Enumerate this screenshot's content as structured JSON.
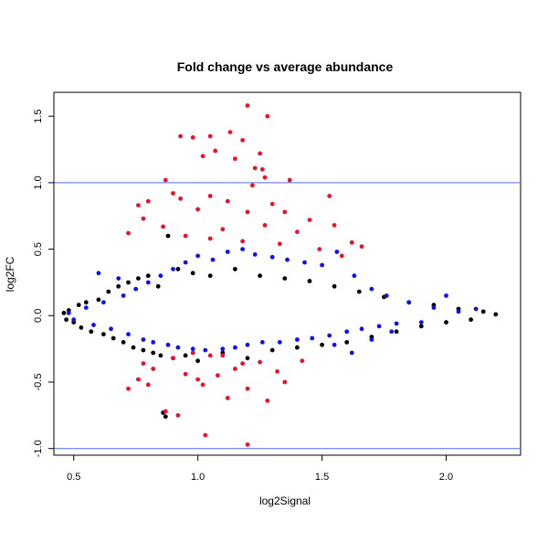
{
  "chart_data": {
    "type": "scatter",
    "title": "Fold change vs average abundance",
    "xlabel": "log2Signal",
    "ylabel": "log2FC",
    "xlim": [
      0.42,
      2.3
    ],
    "ylim": [
      -1.05,
      1.68
    ],
    "xticks": [
      0.5,
      1.0,
      1.5,
      2.0
    ],
    "yticks": [
      -1.0,
      -0.5,
      0.0,
      0.5,
      1.0,
      1.5
    ],
    "xtick_labels": [
      "0.5",
      "1.0",
      "1.5",
      "2.0"
    ],
    "ytick_labels": [
      "-1.0",
      "-0.5",
      "0.0",
      "0.5",
      "1.0",
      "1.5"
    ],
    "grid": false,
    "legend": "none",
    "hlines": [
      {
        "y": 1.0,
        "color": "#5566ee"
      },
      {
        "y": -1.0,
        "color": "#5566ee"
      }
    ],
    "series": [
      {
        "color": "#000000",
        "points": [
          [
            0.46,
            0.02
          ],
          [
            0.47,
            -0.03
          ],
          [
            0.48,
            0.04
          ],
          [
            0.5,
            -0.05
          ],
          [
            0.52,
            0.08
          ],
          [
            0.53,
            -0.09
          ],
          [
            0.55,
            0.1
          ],
          [
            0.57,
            -0.12
          ],
          [
            0.6,
            0.12
          ],
          [
            0.62,
            -0.14
          ],
          [
            0.64,
            0.18
          ],
          [
            0.66,
            -0.17
          ],
          [
            0.68,
            0.22
          ],
          [
            0.7,
            -0.2
          ],
          [
            0.72,
            0.25
          ],
          [
            0.74,
            -0.24
          ],
          [
            0.76,
            0.28
          ],
          [
            0.78,
            -0.26
          ],
          [
            0.8,
            0.3
          ],
          [
            0.82,
            -0.28
          ],
          [
            0.84,
            0.22
          ],
          [
            0.85,
            -0.3
          ],
          [
            0.86,
            -0.73
          ],
          [
            0.87,
            -0.76
          ],
          [
            0.88,
            0.6
          ],
          [
            0.9,
            -0.32
          ],
          [
            0.92,
            0.35
          ],
          [
            0.95,
            -0.3
          ],
          [
            0.98,
            0.32
          ],
          [
            1.0,
            -0.34
          ],
          [
            1.05,
            0.3
          ],
          [
            1.1,
            -0.28
          ],
          [
            1.15,
            0.35
          ],
          [
            1.2,
            -0.32
          ],
          [
            1.25,
            0.3
          ],
          [
            1.3,
            -0.26
          ],
          [
            1.35,
            0.28
          ],
          [
            1.4,
            -0.24
          ],
          [
            1.45,
            0.26
          ],
          [
            1.5,
            -0.22
          ],
          [
            1.55,
            0.22
          ],
          [
            1.6,
            -0.2
          ],
          [
            1.65,
            0.18
          ],
          [
            1.7,
            -0.16
          ],
          [
            1.75,
            0.14
          ],
          [
            1.8,
            -0.12
          ],
          [
            1.85,
            0.1
          ],
          [
            1.9,
            -0.08
          ],
          [
            1.95,
            0.08
          ],
          [
            2.0,
            -0.05
          ],
          [
            2.05,
            0.05
          ],
          [
            2.1,
            -0.03
          ],
          [
            2.15,
            0.03
          ],
          [
            2.2,
            0.01
          ]
        ]
      },
      {
        "color": "#e8142a",
        "points": [
          [
            1.2,
            1.58
          ],
          [
            1.28,
            1.5
          ],
          [
            1.13,
            1.38
          ],
          [
            1.05,
            1.35
          ],
          [
            0.93,
            1.35
          ],
          [
            0.98,
            1.34
          ],
          [
            1.18,
            1.32
          ],
          [
            1.07,
            1.24
          ],
          [
            1.25,
            1.22
          ],
          [
            1.02,
            1.2
          ],
          [
            1.15,
            1.18
          ],
          [
            1.23,
            1.11
          ],
          [
            1.26,
            1.1
          ],
          [
            0.87,
            1.02
          ],
          [
            1.27,
            1.04
          ],
          [
            1.37,
            1.02
          ],
          [
            1.22,
            0.98
          ],
          [
            0.9,
            0.92
          ],
          [
            0.93,
            0.88
          ],
          [
            1.05,
            0.9
          ],
          [
            1.12,
            0.86
          ],
          [
            1.3,
            0.84
          ],
          [
            1.53,
            0.9
          ],
          [
            0.8,
            0.86
          ],
          [
            0.76,
            0.83
          ],
          [
            1.0,
            0.8
          ],
          [
            1.2,
            0.78
          ],
          [
            1.35,
            0.78
          ],
          [
            1.45,
            0.72
          ],
          [
            0.78,
            0.73
          ],
          [
            0.86,
            0.67
          ],
          [
            1.1,
            0.65
          ],
          [
            1.27,
            0.68
          ],
          [
            1.4,
            0.63
          ],
          [
            1.55,
            0.68
          ],
          [
            0.72,
            0.62
          ],
          [
            0.95,
            0.6
          ],
          [
            1.05,
            0.58
          ],
          [
            1.18,
            0.56
          ],
          [
            1.33,
            0.54
          ],
          [
            1.49,
            0.5
          ],
          [
            1.62,
            0.55
          ],
          [
            1.66,
            0.52
          ],
          [
            1.58,
            0.45
          ],
          [
            0.72,
            -0.55
          ],
          [
            0.8,
            -0.52
          ],
          [
            0.78,
            -0.36
          ],
          [
            0.82,
            -0.4
          ],
          [
            0.87,
            -0.72
          ],
          [
            0.92,
            -0.75
          ],
          [
            0.95,
            -0.44
          ],
          [
            1.0,
            -0.48
          ],
          [
            1.05,
            -0.3
          ],
          [
            1.08,
            -0.45
          ],
          [
            1.12,
            -0.62
          ],
          [
            1.15,
            -0.4
          ],
          [
            1.2,
            -0.55
          ],
          [
            1.03,
            -0.9
          ],
          [
            1.25,
            -0.35
          ],
          [
            1.28,
            -0.64
          ],
          [
            1.35,
            -0.5
          ],
          [
            1.42,
            -0.34
          ],
          [
            1.2,
            -0.97
          ],
          [
            0.9,
            -0.32
          ],
          [
            0.98,
            -0.28
          ],
          [
            1.1,
            -0.3
          ],
          [
            1.32,
            -0.42
          ],
          [
            1.18,
            -0.36
          ],
          [
            0.76,
            -0.48
          ],
          [
            1.02,
            -0.52
          ]
        ]
      },
      {
        "color": "#1111ee",
        "points": [
          [
            0.48,
            0.02
          ],
          [
            0.5,
            -0.03
          ],
          [
            0.55,
            0.06
          ],
          [
            0.58,
            -0.07
          ],
          [
            0.62,
            0.1
          ],
          [
            0.65,
            -0.1
          ],
          [
            0.7,
            0.15
          ],
          [
            0.72,
            -0.14
          ],
          [
            0.75,
            0.2
          ],
          [
            0.78,
            -0.18
          ],
          [
            0.8,
            0.25
          ],
          [
            0.82,
            -0.2
          ],
          [
            0.85,
            0.3
          ],
          [
            0.88,
            -0.22
          ],
          [
            0.9,
            0.35
          ],
          [
            0.92,
            -0.24
          ],
          [
            0.95,
            0.4
          ],
          [
            0.98,
            -0.25
          ],
          [
            1.0,
            0.45
          ],
          [
            1.03,
            -0.26
          ],
          [
            1.06,
            0.42
          ],
          [
            1.1,
            -0.25
          ],
          [
            1.12,
            0.48
          ],
          [
            1.15,
            -0.24
          ],
          [
            1.18,
            0.5
          ],
          [
            1.2,
            -0.22
          ],
          [
            1.23,
            0.46
          ],
          [
            1.26,
            -0.2
          ],
          [
            1.3,
            0.44
          ],
          [
            1.33,
            -0.2
          ],
          [
            1.36,
            0.42
          ],
          [
            1.4,
            -0.18
          ],
          [
            1.43,
            0.4
          ],
          [
            1.46,
            -0.17
          ],
          [
            1.5,
            0.38
          ],
          [
            1.53,
            -0.15
          ],
          [
            1.56,
            0.48
          ],
          [
            1.6,
            -0.12
          ],
          [
            1.63,
            0.3
          ],
          [
            1.66,
            -0.1
          ],
          [
            1.7,
            0.2
          ],
          [
            1.73,
            -0.08
          ],
          [
            1.76,
            0.15
          ],
          [
            1.8,
            -0.06
          ],
          [
            1.85,
            0.1
          ],
          [
            1.9,
            -0.05
          ],
          [
            1.95,
            0.06
          ],
          [
            2.0,
            0.15
          ],
          [
            2.05,
            0.03
          ],
          [
            2.12,
            0.05
          ],
          [
            0.6,
            0.32
          ],
          [
            0.68,
            0.28
          ],
          [
            1.55,
            -0.22
          ],
          [
            1.62,
            -0.28
          ],
          [
            1.7,
            -0.18
          ],
          [
            1.78,
            -0.12
          ]
        ]
      }
    ]
  }
}
